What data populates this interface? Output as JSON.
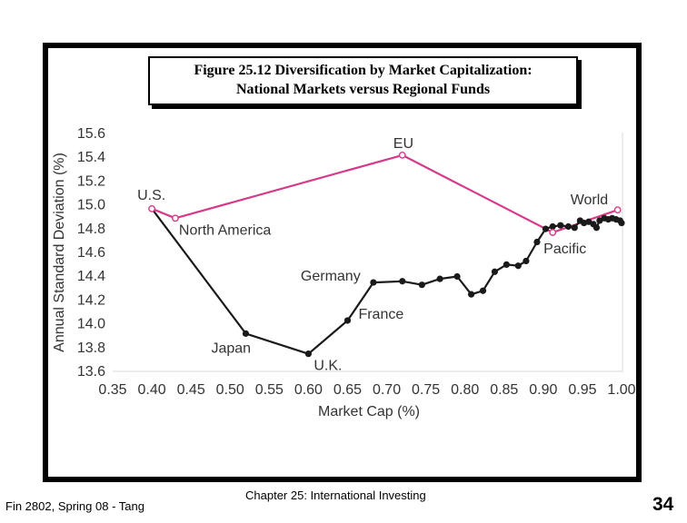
{
  "slide": {
    "title_line1": "Figure 25.12 Diversification by Market Capitalization:",
    "title_line2": "National Markets versus Regional Funds",
    "footer_left": "Fin 2802, Spring 08 - Tang",
    "footer_center": "Chapter 25: International Investing",
    "page_number": "34"
  },
  "chart_data": {
    "type": "line",
    "xlabel": "Market Cap (%)",
    "ylabel": "Annual Standard Deviation (%)",
    "xlim": [
      0.35,
      1.0
    ],
    "ylim": [
      13.6,
      15.6
    ],
    "x_ticks": [
      "0.35",
      "0.40",
      "0.45",
      "0.50",
      "0.55",
      "0.60",
      "0.65",
      "0.70",
      "0.75",
      "0.80",
      "0.85",
      "0.90",
      "0.95",
      "1.00"
    ],
    "y_ticks": [
      "13.6",
      "13.8",
      "14.0",
      "14.2",
      "14.4",
      "14.6",
      "14.8",
      "15.0",
      "15.2",
      "15.4",
      "15.6"
    ],
    "grid": false,
    "series": [
      {
        "name": "Regional funds",
        "color": "#d63a8a",
        "marker": "open-circle",
        "points": [
          [
            0.4,
            14.96
          ],
          [
            0.43,
            14.88
          ],
          [
            0.72,
            15.41
          ],
          [
            0.912,
            14.76
          ],
          [
            0.995,
            14.95
          ]
        ]
      },
      {
        "name": "National markets",
        "color": "#1a1a1a",
        "marker": "filled-circle",
        "points": [
          [
            0.4,
            14.96
          ],
          [
            0.52,
            13.91
          ],
          [
            0.6,
            13.74
          ],
          [
            0.65,
            14.02
          ],
          [
            0.683,
            14.34
          ],
          [
            0.72,
            14.35
          ],
          [
            0.745,
            14.32
          ],
          [
            0.768,
            14.37
          ],
          [
            0.79,
            14.39
          ],
          [
            0.808,
            14.24
          ],
          [
            0.823,
            14.27
          ],
          [
            0.838,
            14.43
          ],
          [
            0.853,
            14.49
          ],
          [
            0.868,
            14.48
          ],
          [
            0.878,
            14.52
          ],
          [
            0.892,
            14.68
          ],
          [
            0.903,
            14.79
          ],
          [
            0.912,
            14.81
          ],
          [
            0.922,
            14.82
          ],
          [
            0.932,
            14.81
          ],
          [
            0.94,
            14.8
          ],
          [
            0.947,
            14.86
          ],
          [
            0.952,
            14.84
          ],
          [
            0.958,
            14.85
          ],
          [
            0.964,
            14.83
          ],
          [
            0.968,
            14.8
          ],
          [
            0.972,
            14.86
          ],
          [
            0.978,
            14.88
          ],
          [
            0.983,
            14.87
          ],
          [
            0.988,
            14.88
          ],
          [
            0.993,
            14.87
          ],
          [
            0.998,
            14.86
          ],
          [
            1.0,
            14.84
          ]
        ]
      }
    ],
    "annotations": [
      {
        "text": "U.S.",
        "x": 0.4,
        "y": 14.96
      },
      {
        "text": "North America",
        "x": 0.43,
        "y": 14.88
      },
      {
        "text": "EU",
        "x": 0.72,
        "y": 15.41
      },
      {
        "text": "World",
        "x": 0.995,
        "y": 14.95
      },
      {
        "text": "Pacific",
        "x": 0.912,
        "y": 14.76
      },
      {
        "text": "Germany",
        "x": 0.683,
        "y": 14.34
      },
      {
        "text": "France",
        "x": 0.65,
        "y": 14.02
      },
      {
        "text": "Japan",
        "x": 0.52,
        "y": 13.91
      },
      {
        "text": "U.K.",
        "x": 0.6,
        "y": 13.74
      }
    ]
  }
}
